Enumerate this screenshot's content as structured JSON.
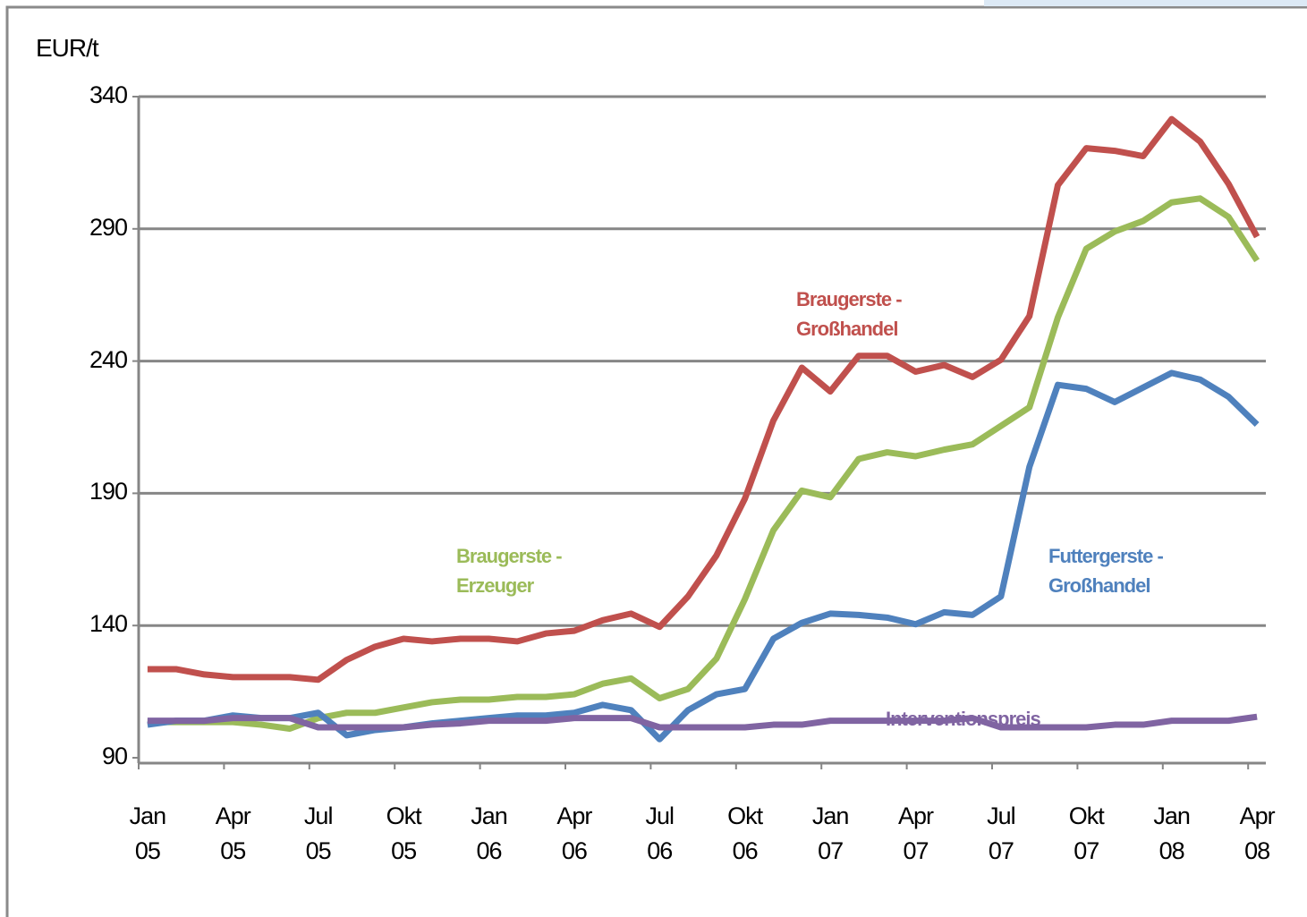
{
  "chart_data": {
    "type": "line",
    "y_label": "EUR/t",
    "categories": [
      "Jan 05",
      null,
      null,
      "Apr 05",
      null,
      null,
      "Jul 05",
      null,
      null,
      "Okt 05",
      null,
      null,
      "Jan 06",
      null,
      null,
      "Apr 06",
      null,
      null,
      "Jul 06",
      null,
      null,
      "Okt 06",
      null,
      null,
      "Jan 07",
      null,
      null,
      "Apr 07",
      null,
      null,
      "Jul 07",
      null,
      null,
      "Okt 07",
      null,
      null,
      "Jan 08",
      null,
      null,
      "Apr 08"
    ],
    "series": [
      {
        "name": "Braugerste - Großhandel",
        "color": "#c0504d",
        "values": [
          123.5,
          123.5,
          121.5,
          120.5,
          120.5,
          120.5,
          119.5,
          127,
          132,
          135,
          134,
          135,
          135,
          134,
          137,
          138,
          142,
          144.5,
          139.5,
          151,
          166.5,
          188,
          217.5,
          237.5,
          228.5,
          242,
          242,
          236,
          238.5,
          234,
          240.5,
          257,
          306.5,
          320.5,
          319.5,
          317.5,
          331.5,
          323,
          307,
          287
        ]
      },
      {
        "name": "Braugerste - Erzeuger",
        "color": "#9bbb59",
        "values": [
          103.5,
          103.5,
          103.5,
          103.5,
          102.5,
          101,
          105,
          107,
          107,
          109,
          111,
          112,
          112,
          113,
          113,
          114,
          118,
          120,
          112.5,
          116,
          127.5,
          150,
          176,
          191,
          188.5,
          203,
          205.5,
          204,
          206.5,
          208.5,
          215.5,
          222.5,
          256.5,
          282.5,
          289,
          293,
          300,
          301.5,
          294.5,
          278
        ]
      },
      {
        "name": "Futtergerste - Großhandel",
        "color": "#4f81bd",
        "values": [
          102.5,
          104,
          104,
          106,
          105,
          105,
          107,
          98.5,
          100.5,
          101.5,
          103,
          104,
          105,
          106,
          106,
          107,
          110,
          108,
          97,
          108,
          114,
          116,
          135,
          141,
          144.5,
          144,
          143,
          140.5,
          145,
          144,
          151,
          200,
          231,
          229.5,
          224.5,
          230,
          235.5,
          233,
          226.5,
          216
        ]
      },
      {
        "name": "Interventionspreis",
        "color": "#8064a2",
        "values": [
          104,
          104,
          104,
          105,
          105,
          105,
          101.5,
          101.5,
          101.5,
          101.5,
          102.5,
          103,
          104,
          104,
          104,
          105,
          105,
          105,
          101.5,
          101.5,
          101.5,
          101.5,
          102.5,
          102.5,
          104,
          104,
          104,
          104,
          104,
          105,
          101.5,
          101.5,
          101.5,
          101.5,
          102.5,
          102.5,
          104,
          104,
          104,
          105.5
        ]
      }
    ],
    "ylim": [
      90,
      340
    ],
    "yticks": [
      90,
      140,
      190,
      240,
      290,
      340
    ],
    "grid": true
  }
}
